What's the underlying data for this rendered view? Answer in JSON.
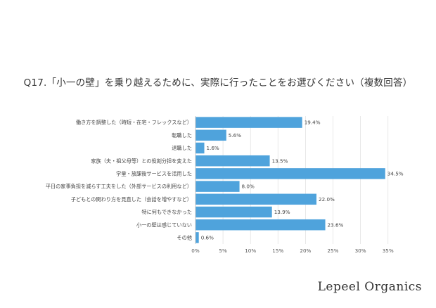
{
  "chart_data": {
    "type": "bar",
    "orientation": "horizontal",
    "title": "Q17.「小一の壁」を乗り越えるために、実際に行ったことをお選びください（複数回答）",
    "categories": [
      "働き方を調整した（時短・在宅・フレックスなど）",
      "転職した",
      "退職した",
      "家族（夫・祖父母等）との役割分担を変えた",
      "学童・放課後サービスを活用した",
      "平日の家事負担を減らす工夫をした（外部サービスの利用など）",
      "子どもとの関わり方を見直した（会話を増やすなど）",
      "特に何もできなかった",
      "小一の壁は感じていない",
      "その他"
    ],
    "values": [
      19.4,
      5.6,
      1.6,
      13.5,
      34.5,
      8.0,
      22.0,
      13.9,
      23.6,
      0.6
    ],
    "value_labels": [
      "19.4%",
      "5.6%",
      "1.6%",
      "13.5%",
      "34.5%",
      "8.0%",
      "22.0%",
      "13.9%",
      "23.6%",
      "0.6%"
    ],
    "xticks": [
      "0%",
      "5%",
      "10%",
      "15%",
      "20%",
      "25%",
      "30%",
      "35%"
    ],
    "xlim": [
      0,
      35
    ],
    "xlabel": "",
    "ylabel": "",
    "grid": true,
    "bar_color": "#4fa3dc"
  },
  "brand": "Lepeel Organics"
}
